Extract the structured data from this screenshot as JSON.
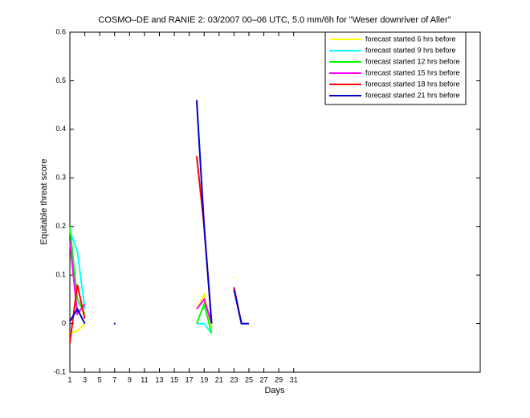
{
  "chart_data": {
    "type": "line",
    "title": "COSMO–DE and RANIE 2: 03/2007 00–06 UTC, 5.0 mm/6h for \"Weser downriver of Aller\"",
    "xlabel": "Days",
    "ylabel": "Equitable threat score",
    "x": [
      1,
      2,
      3,
      4,
      5,
      6,
      7,
      8,
      9,
      10,
      11,
      12,
      13,
      14,
      15,
      16,
      17,
      18,
      19,
      20,
      21,
      22,
      23,
      24,
      25
    ],
    "xlim": [
      1,
      56
    ],
    "xticks": [
      1,
      3,
      5,
      7,
      9,
      11,
      13,
      15,
      17,
      19,
      21,
      23,
      25,
      27,
      29,
      31
    ],
    "ylim": [
      -0.1,
      0.6
    ],
    "yticks": [
      -0.1,
      0,
      0.1,
      0.2,
      0.3,
      0.4,
      0.5,
      0.6
    ],
    "legend": "upper right",
    "series": [
      {
        "name": "forecast started 6 hrs before",
        "color": "#ffff00",
        "values": [
          -0.02,
          -0.015,
          0,
          null,
          null,
          null,
          null,
          null,
          null,
          null,
          null,
          null,
          null,
          null,
          null,
          null,
          null,
          0.03,
          0.06,
          -0.01,
          null,
          null,
          0.095,
          null,
          null
        ]
      },
      {
        "name": "forecast started 9 hrs before",
        "color": "#00ffff",
        "values": [
          0.19,
          0.15,
          0.03,
          null,
          null,
          null,
          null,
          null,
          null,
          null,
          null,
          null,
          null,
          null,
          null,
          null,
          null,
          0,
          0,
          -0.02,
          null,
          null,
          null,
          null,
          null
        ]
      },
      {
        "name": "forecast started 12 hrs before",
        "color": "#00ff00",
        "values": [
          0.2,
          0.05,
          0.02,
          null,
          null,
          null,
          null,
          null,
          null,
          null,
          null,
          null,
          null,
          null,
          null,
          null,
          null,
          0,
          0.04,
          -0.02,
          null,
          null,
          null,
          null,
          null
        ]
      },
      {
        "name": "forecast started 15 hrs before",
        "color": "#ff00ff",
        "values": [
          0.17,
          0.02,
          0.04,
          null,
          null,
          null,
          null,
          null,
          null,
          null,
          null,
          null,
          null,
          null,
          null,
          null,
          null,
          0.03,
          0.05,
          0,
          null,
          null,
          null,
          null,
          null
        ]
      },
      {
        "name": "forecast started 18 hrs before",
        "color": "#ff0000",
        "values": [
          -0.04,
          0.08,
          0.01,
          null,
          null,
          null,
          null,
          null,
          null,
          null,
          null,
          null,
          null,
          null,
          null,
          null,
          null,
          0.345,
          0.2,
          0,
          null,
          null,
          0.075,
          0,
          null
        ]
      },
      {
        "name": "forecast started 21 hrs before",
        "color": "#0000cc",
        "values": [
          0.005,
          0.03,
          0,
          null,
          null,
          null,
          0,
          null,
          null,
          null,
          null,
          null,
          null,
          null,
          null,
          null,
          null,
          0.46,
          0.2,
          0,
          null,
          null,
          0.07,
          0,
          0
        ]
      }
    ]
  }
}
